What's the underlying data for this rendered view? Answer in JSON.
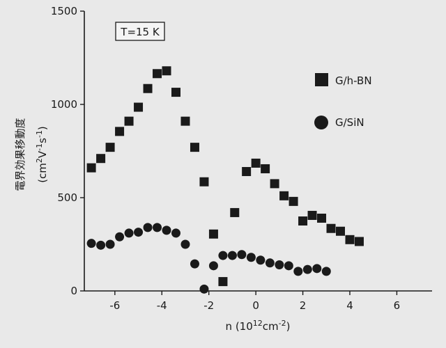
{
  "chart_data": {
    "type": "scatter",
    "annotation": "T=15 K",
    "xlabel": {
      "prefix": "n (10",
      "sup": "12",
      "mid": "cm",
      "sup2": "-2",
      "suffix": ")"
    },
    "ylabel": {
      "title": "電界効果移動度",
      "unit_prefix": "(cm",
      "unit_sup1": "2",
      "unit_mid1": "V",
      "unit_sup2": "-1",
      "unit_mid2": "s",
      "unit_sup3": "-1",
      "unit_suffix": ")"
    },
    "xlim": [
      -7.3,
      7.5
    ],
    "ylim": [
      0,
      1500
    ],
    "xticks": [
      -6,
      -4,
      -2,
      0,
      2,
      4,
      6
    ],
    "yticks": [
      0,
      500,
      1000,
      1500
    ],
    "series": [
      {
        "name": "G/h-BN",
        "marker": "square",
        "color": "#1a1a1a",
        "points": [
          {
            "x": -7.0,
            "y": 660
          },
          {
            "x": -6.6,
            "y": 710
          },
          {
            "x": -6.2,
            "y": 770
          },
          {
            "x": -5.8,
            "y": 855
          },
          {
            "x": -5.4,
            "y": 910
          },
          {
            "x": -5.0,
            "y": 985
          },
          {
            "x": -4.6,
            "y": 1085
          },
          {
            "x": -4.2,
            "y": 1165
          },
          {
            "x": -3.8,
            "y": 1180
          },
          {
            "x": -3.4,
            "y": 1065
          },
          {
            "x": -3.0,
            "y": 910
          },
          {
            "x": -2.6,
            "y": 770
          },
          {
            "x": -2.2,
            "y": 585
          },
          {
            "x": -1.8,
            "y": 305
          },
          {
            "x": -1.4,
            "y": 50
          },
          {
            "x": -0.9,
            "y": 420
          },
          {
            "x": -0.4,
            "y": 640
          },
          {
            "x": 0.0,
            "y": 685
          },
          {
            "x": 0.4,
            "y": 655
          },
          {
            "x": 0.8,
            "y": 575
          },
          {
            "x": 1.2,
            "y": 510
          },
          {
            "x": 1.6,
            "y": 480
          },
          {
            "x": 2.0,
            "y": 375
          },
          {
            "x": 2.4,
            "y": 405
          },
          {
            "x": 2.8,
            "y": 390
          },
          {
            "x": 3.2,
            "y": 335
          },
          {
            "x": 3.6,
            "y": 320
          },
          {
            "x": 4.0,
            "y": 275
          },
          {
            "x": 4.4,
            "y": 265
          }
        ]
      },
      {
        "name": "G/SiN",
        "marker": "circle",
        "color": "#1a1a1a",
        "points": [
          {
            "x": -7.0,
            "y": 255
          },
          {
            "x": -6.6,
            "y": 245
          },
          {
            "x": -6.2,
            "y": 250
          },
          {
            "x": -5.8,
            "y": 290
          },
          {
            "x": -5.4,
            "y": 310
          },
          {
            "x": -5.0,
            "y": 315
          },
          {
            "x": -4.6,
            "y": 340
          },
          {
            "x": -4.2,
            "y": 340
          },
          {
            "x": -3.8,
            "y": 325
          },
          {
            "x": -3.4,
            "y": 310
          },
          {
            "x": -3.0,
            "y": 250
          },
          {
            "x": -2.6,
            "y": 145
          },
          {
            "x": -2.2,
            "y": 10
          },
          {
            "x": -1.8,
            "y": 135
          },
          {
            "x": -1.4,
            "y": 190
          },
          {
            "x": -1.0,
            "y": 190
          },
          {
            "x": -0.6,
            "y": 195
          },
          {
            "x": -0.2,
            "y": 180
          },
          {
            "x": 0.2,
            "y": 165
          },
          {
            "x": 0.6,
            "y": 150
          },
          {
            "x": 1.0,
            "y": 140
          },
          {
            "x": 1.4,
            "y": 135
          },
          {
            "x": 1.8,
            "y": 105
          },
          {
            "x": 2.2,
            "y": 115
          },
          {
            "x": 2.6,
            "y": 120
          },
          {
            "x": 3.0,
            "y": 105
          }
        ]
      }
    ],
    "legend_position": "right"
  }
}
